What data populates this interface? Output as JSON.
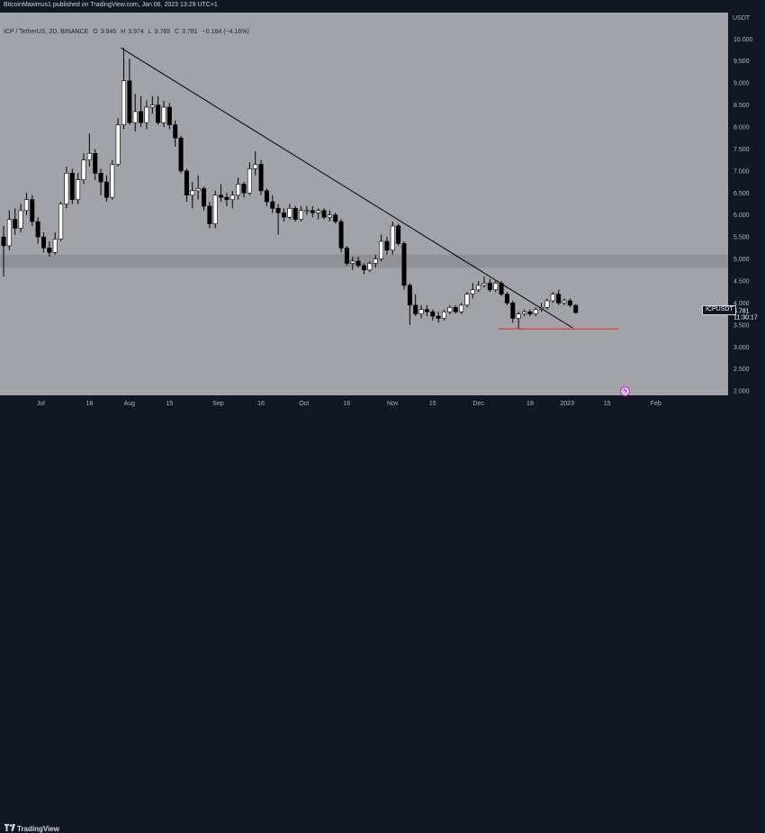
{
  "header": {
    "publisher_line": "BitcoinMaximus1 published on TradingView.com, Jan 06, 2023 13:29 UTC+1"
  },
  "symbol_bar": {
    "pair": "ICP / TetherUS, 2D, BINANCE",
    "open_label": "O",
    "open_value": "3.945",
    "high_label": "H",
    "high_value": "3.974",
    "low_label": "L",
    "low_value": "3.765",
    "close_label": "C",
    "close_value": "3.781",
    "change": "−0.164 (−4.16%)"
  },
  "price_axis": {
    "currency": "USDT",
    "ticks": [
      "10.000",
      "9.500",
      "9.000",
      "8.500",
      "8.000",
      "7.500",
      "7.000",
      "6.500",
      "6.000",
      "5.500",
      "5.000",
      "4.500",
      "4.000",
      "3.500",
      "3.000",
      "2.500",
      "2.000"
    ]
  },
  "last_price": {
    "symbol": "ICPUSDT",
    "price": "3.781",
    "countdown": "11:30:17"
  },
  "time_axis": {
    "labels": [
      "Jul",
      "18",
      "Aug",
      "15",
      "Sep",
      "16",
      "Oct",
      "16",
      "Nov",
      "15",
      "Dec",
      "19",
      "2023",
      "15",
      "Feb"
    ]
  },
  "footer": {
    "brand": "TradingView"
  },
  "colors": {
    "background": "#a1a3a8",
    "up_candle": "#ffffff",
    "down_candle": "#000000",
    "trendline": "#000000",
    "support_line": "#e53935",
    "zone": "#8c8e94"
  },
  "chart_data": {
    "type": "candlestick",
    "title": "ICP / TetherUS, 2D, BINANCE",
    "ylim": [
      1.9,
      10.6
    ],
    "xlim": [
      "2022-06-18",
      "2023-02-25"
    ],
    "y_ticks": [
      10.0,
      9.5,
      9.0,
      8.5,
      8.0,
      7.5,
      7.0,
      6.5,
      6.0,
      5.5,
      5.0,
      4.5,
      4.0,
      3.5,
      3.0,
      2.5,
      2.0
    ],
    "x_ticks": [
      {
        "date": "2022-07-01",
        "label": "Jul"
      },
      {
        "date": "2022-07-18",
        "label": "18"
      },
      {
        "date": "2022-08-01",
        "label": "Aug"
      },
      {
        "date": "2022-08-15",
        "label": "15"
      },
      {
        "date": "2022-09-01",
        "label": "Sep"
      },
      {
        "date": "2022-09-16",
        "label": "16"
      },
      {
        "date": "2022-10-01",
        "label": "Oct"
      },
      {
        "date": "2022-10-16",
        "label": "16"
      },
      {
        "date": "2022-11-01",
        "label": "Nov"
      },
      {
        "date": "2022-11-15",
        "label": "15"
      },
      {
        "date": "2022-12-01",
        "label": "Dec"
      },
      {
        "date": "2022-12-19",
        "label": "19"
      },
      {
        "date": "2023-01-01",
        "label": "2023"
      },
      {
        "date": "2023-01-15",
        "label": "15"
      },
      {
        "date": "2023-02-01",
        "label": "Feb"
      }
    ],
    "grid": false,
    "candles": [
      {
        "date": "2022-06-18",
        "o": 5.5,
        "h": 5.75,
        "l": 4.6,
        "c": 5.3
      },
      {
        "date": "2022-06-20",
        "o": 5.3,
        "h": 6.1,
        "l": 5.2,
        "c": 5.9
      },
      {
        "date": "2022-06-22",
        "o": 5.9,
        "h": 6.15,
        "l": 5.55,
        "c": 5.7
      },
      {
        "date": "2022-06-24",
        "o": 5.7,
        "h": 6.25,
        "l": 5.6,
        "c": 6.1
      },
      {
        "date": "2022-06-26",
        "o": 6.1,
        "h": 6.5,
        "l": 6.0,
        "c": 6.35
      },
      {
        "date": "2022-06-28",
        "o": 6.35,
        "h": 6.45,
        "l": 5.75,
        "c": 5.85
      },
      {
        "date": "2022-06-30",
        "o": 5.85,
        "h": 5.95,
        "l": 5.35,
        "c": 5.5
      },
      {
        "date": "2022-07-02",
        "o": 5.5,
        "h": 5.6,
        "l": 5.15,
        "c": 5.25
      },
      {
        "date": "2022-07-04",
        "o": 5.25,
        "h": 5.4,
        "l": 5.05,
        "c": 5.15
      },
      {
        "date": "2022-07-06",
        "o": 5.15,
        "h": 5.6,
        "l": 5.1,
        "c": 5.45
      },
      {
        "date": "2022-07-08",
        "o": 5.45,
        "h": 6.3,
        "l": 5.4,
        "c": 6.25
      },
      {
        "date": "2022-07-10",
        "o": 6.25,
        "h": 7.1,
        "l": 6.15,
        "c": 6.95
      },
      {
        "date": "2022-07-12",
        "o": 6.95,
        "h": 7.05,
        "l": 6.25,
        "c": 6.35
      },
      {
        "date": "2022-07-14",
        "o": 6.35,
        "h": 6.95,
        "l": 6.25,
        "c": 6.8
      },
      {
        "date": "2022-07-16",
        "o": 6.8,
        "h": 7.4,
        "l": 6.7,
        "c": 7.25
      },
      {
        "date": "2022-07-18",
        "o": 7.25,
        "h": 7.85,
        "l": 7.1,
        "c": 7.4
      },
      {
        "date": "2022-07-20",
        "o": 7.4,
        "h": 7.5,
        "l": 6.8,
        "c": 6.95
      },
      {
        "date": "2022-07-22",
        "o": 6.95,
        "h": 7.05,
        "l": 6.45,
        "c": 6.75
      },
      {
        "date": "2022-07-24",
        "o": 6.75,
        "h": 6.9,
        "l": 6.3,
        "c": 6.4
      },
      {
        "date": "2022-07-26",
        "o": 6.4,
        "h": 7.25,
        "l": 6.35,
        "c": 7.15
      },
      {
        "date": "2022-07-28",
        "o": 7.15,
        "h": 8.2,
        "l": 7.1,
        "c": 8.05
      },
      {
        "date": "2022-07-30",
        "o": 8.05,
        "h": 9.8,
        "l": 7.95,
        "c": 9.05
      },
      {
        "date": "2022-08-01",
        "o": 9.05,
        "h": 9.55,
        "l": 8.05,
        "c": 8.1
      },
      {
        "date": "2022-08-03",
        "o": 8.1,
        "h": 8.75,
        "l": 7.9,
        "c": 8.35
      },
      {
        "date": "2022-08-05",
        "o": 8.35,
        "h": 8.7,
        "l": 8.0,
        "c": 8.1
      },
      {
        "date": "2022-08-07",
        "o": 8.1,
        "h": 8.6,
        "l": 7.95,
        "c": 8.45
      },
      {
        "date": "2022-08-09",
        "o": 8.45,
        "h": 8.7,
        "l": 8.3,
        "c": 8.5
      },
      {
        "date": "2022-08-11",
        "o": 8.5,
        "h": 8.7,
        "l": 8.05,
        "c": 8.1
      },
      {
        "date": "2022-08-13",
        "o": 8.1,
        "h": 8.6,
        "l": 8.0,
        "c": 8.45
      },
      {
        "date": "2022-08-15",
        "o": 8.45,
        "h": 8.55,
        "l": 7.95,
        "c": 8.05
      },
      {
        "date": "2022-08-17",
        "o": 8.05,
        "h": 8.15,
        "l": 7.55,
        "c": 7.75
      },
      {
        "date": "2022-08-19",
        "o": 7.75,
        "h": 7.8,
        "l": 6.95,
        "c": 7.0
      },
      {
        "date": "2022-08-21",
        "o": 7.0,
        "h": 7.05,
        "l": 6.3,
        "c": 6.45
      },
      {
        "date": "2022-08-23",
        "o": 6.45,
        "h": 6.75,
        "l": 6.15,
        "c": 6.55
      },
      {
        "date": "2022-08-25",
        "o": 6.55,
        "h": 6.9,
        "l": 6.35,
        "c": 6.6
      },
      {
        "date": "2022-08-27",
        "o": 6.6,
        "h": 6.65,
        "l": 6.1,
        "c": 6.2
      },
      {
        "date": "2022-08-29",
        "o": 6.2,
        "h": 6.3,
        "l": 5.7,
        "c": 5.8
      },
      {
        "date": "2022-08-31",
        "o": 5.8,
        "h": 6.55,
        "l": 5.7,
        "c": 6.45
      },
      {
        "date": "2022-09-02",
        "o": 6.45,
        "h": 6.7,
        "l": 6.3,
        "c": 6.4
      },
      {
        "date": "2022-09-04",
        "o": 6.4,
        "h": 6.5,
        "l": 6.2,
        "c": 6.35
      },
      {
        "date": "2022-09-06",
        "o": 6.35,
        "h": 6.55,
        "l": 6.15,
        "c": 6.45
      },
      {
        "date": "2022-09-08",
        "o": 6.45,
        "h": 6.85,
        "l": 6.35,
        "c": 6.7
      },
      {
        "date": "2022-09-10",
        "o": 6.7,
        "h": 6.75,
        "l": 6.4,
        "c": 6.5
      },
      {
        "date": "2022-09-12",
        "o": 6.5,
        "h": 7.2,
        "l": 6.45,
        "c": 7.05
      },
      {
        "date": "2022-09-14",
        "o": 7.05,
        "h": 7.45,
        "l": 6.9,
        "c": 7.15
      },
      {
        "date": "2022-09-16",
        "o": 7.15,
        "h": 7.25,
        "l": 6.45,
        "c": 6.55
      },
      {
        "date": "2022-09-18",
        "o": 6.55,
        "h": 6.6,
        "l": 6.2,
        "c": 6.3
      },
      {
        "date": "2022-09-20",
        "o": 6.3,
        "h": 6.45,
        "l": 6.05,
        "c": 6.15
      },
      {
        "date": "2022-09-22",
        "o": 6.15,
        "h": 6.25,
        "l": 5.55,
        "c": 6.05
      },
      {
        "date": "2022-09-24",
        "o": 6.05,
        "h": 6.15,
        "l": 5.85,
        "c": 5.95
      },
      {
        "date": "2022-09-26",
        "o": 5.95,
        "h": 6.25,
        "l": 5.9,
        "c": 6.15
      },
      {
        "date": "2022-09-28",
        "o": 6.15,
        "h": 6.2,
        "l": 5.85,
        "c": 5.9
      },
      {
        "date": "2022-09-30",
        "o": 5.9,
        "h": 6.2,
        "l": 5.85,
        "c": 6.1
      },
      {
        "date": "2022-10-02",
        "o": 6.1,
        "h": 6.2,
        "l": 6.0,
        "c": 6.1
      },
      {
        "date": "2022-10-04",
        "o": 6.1,
        "h": 6.2,
        "l": 5.95,
        "c": 6.05
      },
      {
        "date": "2022-10-06",
        "o": 6.05,
        "h": 6.15,
        "l": 5.9,
        "c": 6.1
      },
      {
        "date": "2022-10-08",
        "o": 6.1,
        "h": 6.15,
        "l": 5.9,
        "c": 5.95
      },
      {
        "date": "2022-10-10",
        "o": 5.95,
        "h": 6.1,
        "l": 5.85,
        "c": 6.0
      },
      {
        "date": "2022-10-12",
        "o": 6.0,
        "h": 6.05,
        "l": 5.8,
        "c": 5.85
      },
      {
        "date": "2022-10-14",
        "o": 5.85,
        "h": 5.9,
        "l": 5.15,
        "c": 5.25
      },
      {
        "date": "2022-10-16",
        "o": 5.25,
        "h": 5.3,
        "l": 4.85,
        "c": 4.9
      },
      {
        "date": "2022-10-18",
        "o": 4.9,
        "h": 5.05,
        "l": 4.75,
        "c": 4.95
      },
      {
        "date": "2022-10-20",
        "o": 4.95,
        "h": 5.05,
        "l": 4.8,
        "c": 4.85
      },
      {
        "date": "2022-10-22",
        "o": 4.85,
        "h": 4.9,
        "l": 4.65,
        "c": 4.75
      },
      {
        "date": "2022-10-24",
        "o": 4.75,
        "h": 4.95,
        "l": 4.7,
        "c": 4.9
      },
      {
        "date": "2022-10-26",
        "o": 4.9,
        "h": 5.1,
        "l": 4.8,
        "c": 5.0
      },
      {
        "date": "2022-10-28",
        "o": 5.0,
        "h": 5.55,
        "l": 4.95,
        "c": 5.4
      },
      {
        "date": "2022-10-30",
        "o": 5.4,
        "h": 5.5,
        "l": 5.1,
        "c": 5.2
      },
      {
        "date": "2022-11-01",
        "o": 5.2,
        "h": 5.85,
        "l": 5.1,
        "c": 5.75
      },
      {
        "date": "2022-11-03",
        "o": 5.75,
        "h": 5.8,
        "l": 5.3,
        "c": 5.35
      },
      {
        "date": "2022-11-05",
        "o": 5.35,
        "h": 5.4,
        "l": 4.3,
        "c": 4.4
      },
      {
        "date": "2022-11-07",
        "o": 4.4,
        "h": 4.45,
        "l": 3.5,
        "c": 3.95
      },
      {
        "date": "2022-11-09",
        "o": 3.95,
        "h": 4.2,
        "l": 3.7,
        "c": 3.75
      },
      {
        "date": "2022-11-11",
        "o": 3.75,
        "h": 3.95,
        "l": 3.65,
        "c": 3.85
      },
      {
        "date": "2022-11-13",
        "o": 3.85,
        "h": 3.95,
        "l": 3.7,
        "c": 3.8
      },
      {
        "date": "2022-11-15",
        "o": 3.8,
        "h": 3.85,
        "l": 3.6,
        "c": 3.7
      },
      {
        "date": "2022-11-17",
        "o": 3.7,
        "h": 3.8,
        "l": 3.55,
        "c": 3.65
      },
      {
        "date": "2022-11-19",
        "o": 3.65,
        "h": 3.85,
        "l": 3.6,
        "c": 3.8
      },
      {
        "date": "2022-11-21",
        "o": 3.8,
        "h": 3.95,
        "l": 3.75,
        "c": 3.9
      },
      {
        "date": "2022-11-23",
        "o": 3.9,
        "h": 3.95,
        "l": 3.75,
        "c": 3.8
      },
      {
        "date": "2022-11-25",
        "o": 3.8,
        "h": 4.0,
        "l": 3.75,
        "c": 3.95
      },
      {
        "date": "2022-11-27",
        "o": 3.95,
        "h": 4.25,
        "l": 3.9,
        "c": 4.2
      },
      {
        "date": "2022-11-29",
        "o": 4.2,
        "h": 4.45,
        "l": 4.1,
        "c": 4.3
      },
      {
        "date": "2022-12-01",
        "o": 4.3,
        "h": 4.5,
        "l": 4.25,
        "c": 4.4
      },
      {
        "date": "2022-12-03",
        "o": 4.4,
        "h": 4.6,
        "l": 4.35,
        "c": 4.45
      },
      {
        "date": "2022-12-05",
        "o": 4.45,
        "h": 4.55,
        "l": 4.25,
        "c": 4.3
      },
      {
        "date": "2022-12-07",
        "o": 4.3,
        "h": 4.5,
        "l": 4.25,
        "c": 4.45
      },
      {
        "date": "2022-12-09",
        "o": 4.45,
        "h": 4.5,
        "l": 4.15,
        "c": 4.2
      },
      {
        "date": "2022-12-11",
        "o": 4.2,
        "h": 4.25,
        "l": 3.95,
        "c": 4.0
      },
      {
        "date": "2022-12-13",
        "o": 4.0,
        "h": 4.05,
        "l": 3.55,
        "c": 3.65
      },
      {
        "date": "2022-12-15",
        "o": 3.65,
        "h": 3.8,
        "l": 3.4,
        "c": 3.75
      },
      {
        "date": "2022-12-17",
        "o": 3.75,
        "h": 3.85,
        "l": 3.7,
        "c": 3.8
      },
      {
        "date": "2022-12-19",
        "o": 3.8,
        "h": 3.85,
        "l": 3.7,
        "c": 3.75
      },
      {
        "date": "2022-12-21",
        "o": 3.75,
        "h": 3.9,
        "l": 3.7,
        "c": 3.85
      },
      {
        "date": "2022-12-23",
        "o": 3.85,
        "h": 4.0,
        "l": 3.8,
        "c": 3.9
      },
      {
        "date": "2022-12-25",
        "o": 3.9,
        "h": 4.1,
        "l": 3.85,
        "c": 4.05
      },
      {
        "date": "2022-12-27",
        "o": 4.05,
        "h": 4.25,
        "l": 4.0,
        "c": 4.2
      },
      {
        "date": "2022-12-29",
        "o": 4.2,
        "h": 4.3,
        "l": 3.95,
        "c": 4.0
      },
      {
        "date": "2022-12-31",
        "o": 4.0,
        "h": 4.1,
        "l": 3.95,
        "c": 4.05
      },
      {
        "date": "2023-01-02",
        "o": 4.05,
        "h": 4.1,
        "l": 3.9,
        "c": 3.95
      },
      {
        "date": "2023-01-04",
        "o": 3.945,
        "h": 3.974,
        "l": 3.765,
        "c": 3.781
      }
    ],
    "trendline": {
      "from": {
        "date": "2022-07-29",
        "y": 9.8
      },
      "to": {
        "date": "2023-01-03",
        "y": 3.43
      }
    },
    "support_line": {
      "from": {
        "date": "2022-12-08",
        "y": 3.41
      },
      "to": {
        "date": "2023-01-19",
        "y": 3.41
      }
    },
    "zone": {
      "ymin": 4.8,
      "ymax": 5.1
    }
  }
}
